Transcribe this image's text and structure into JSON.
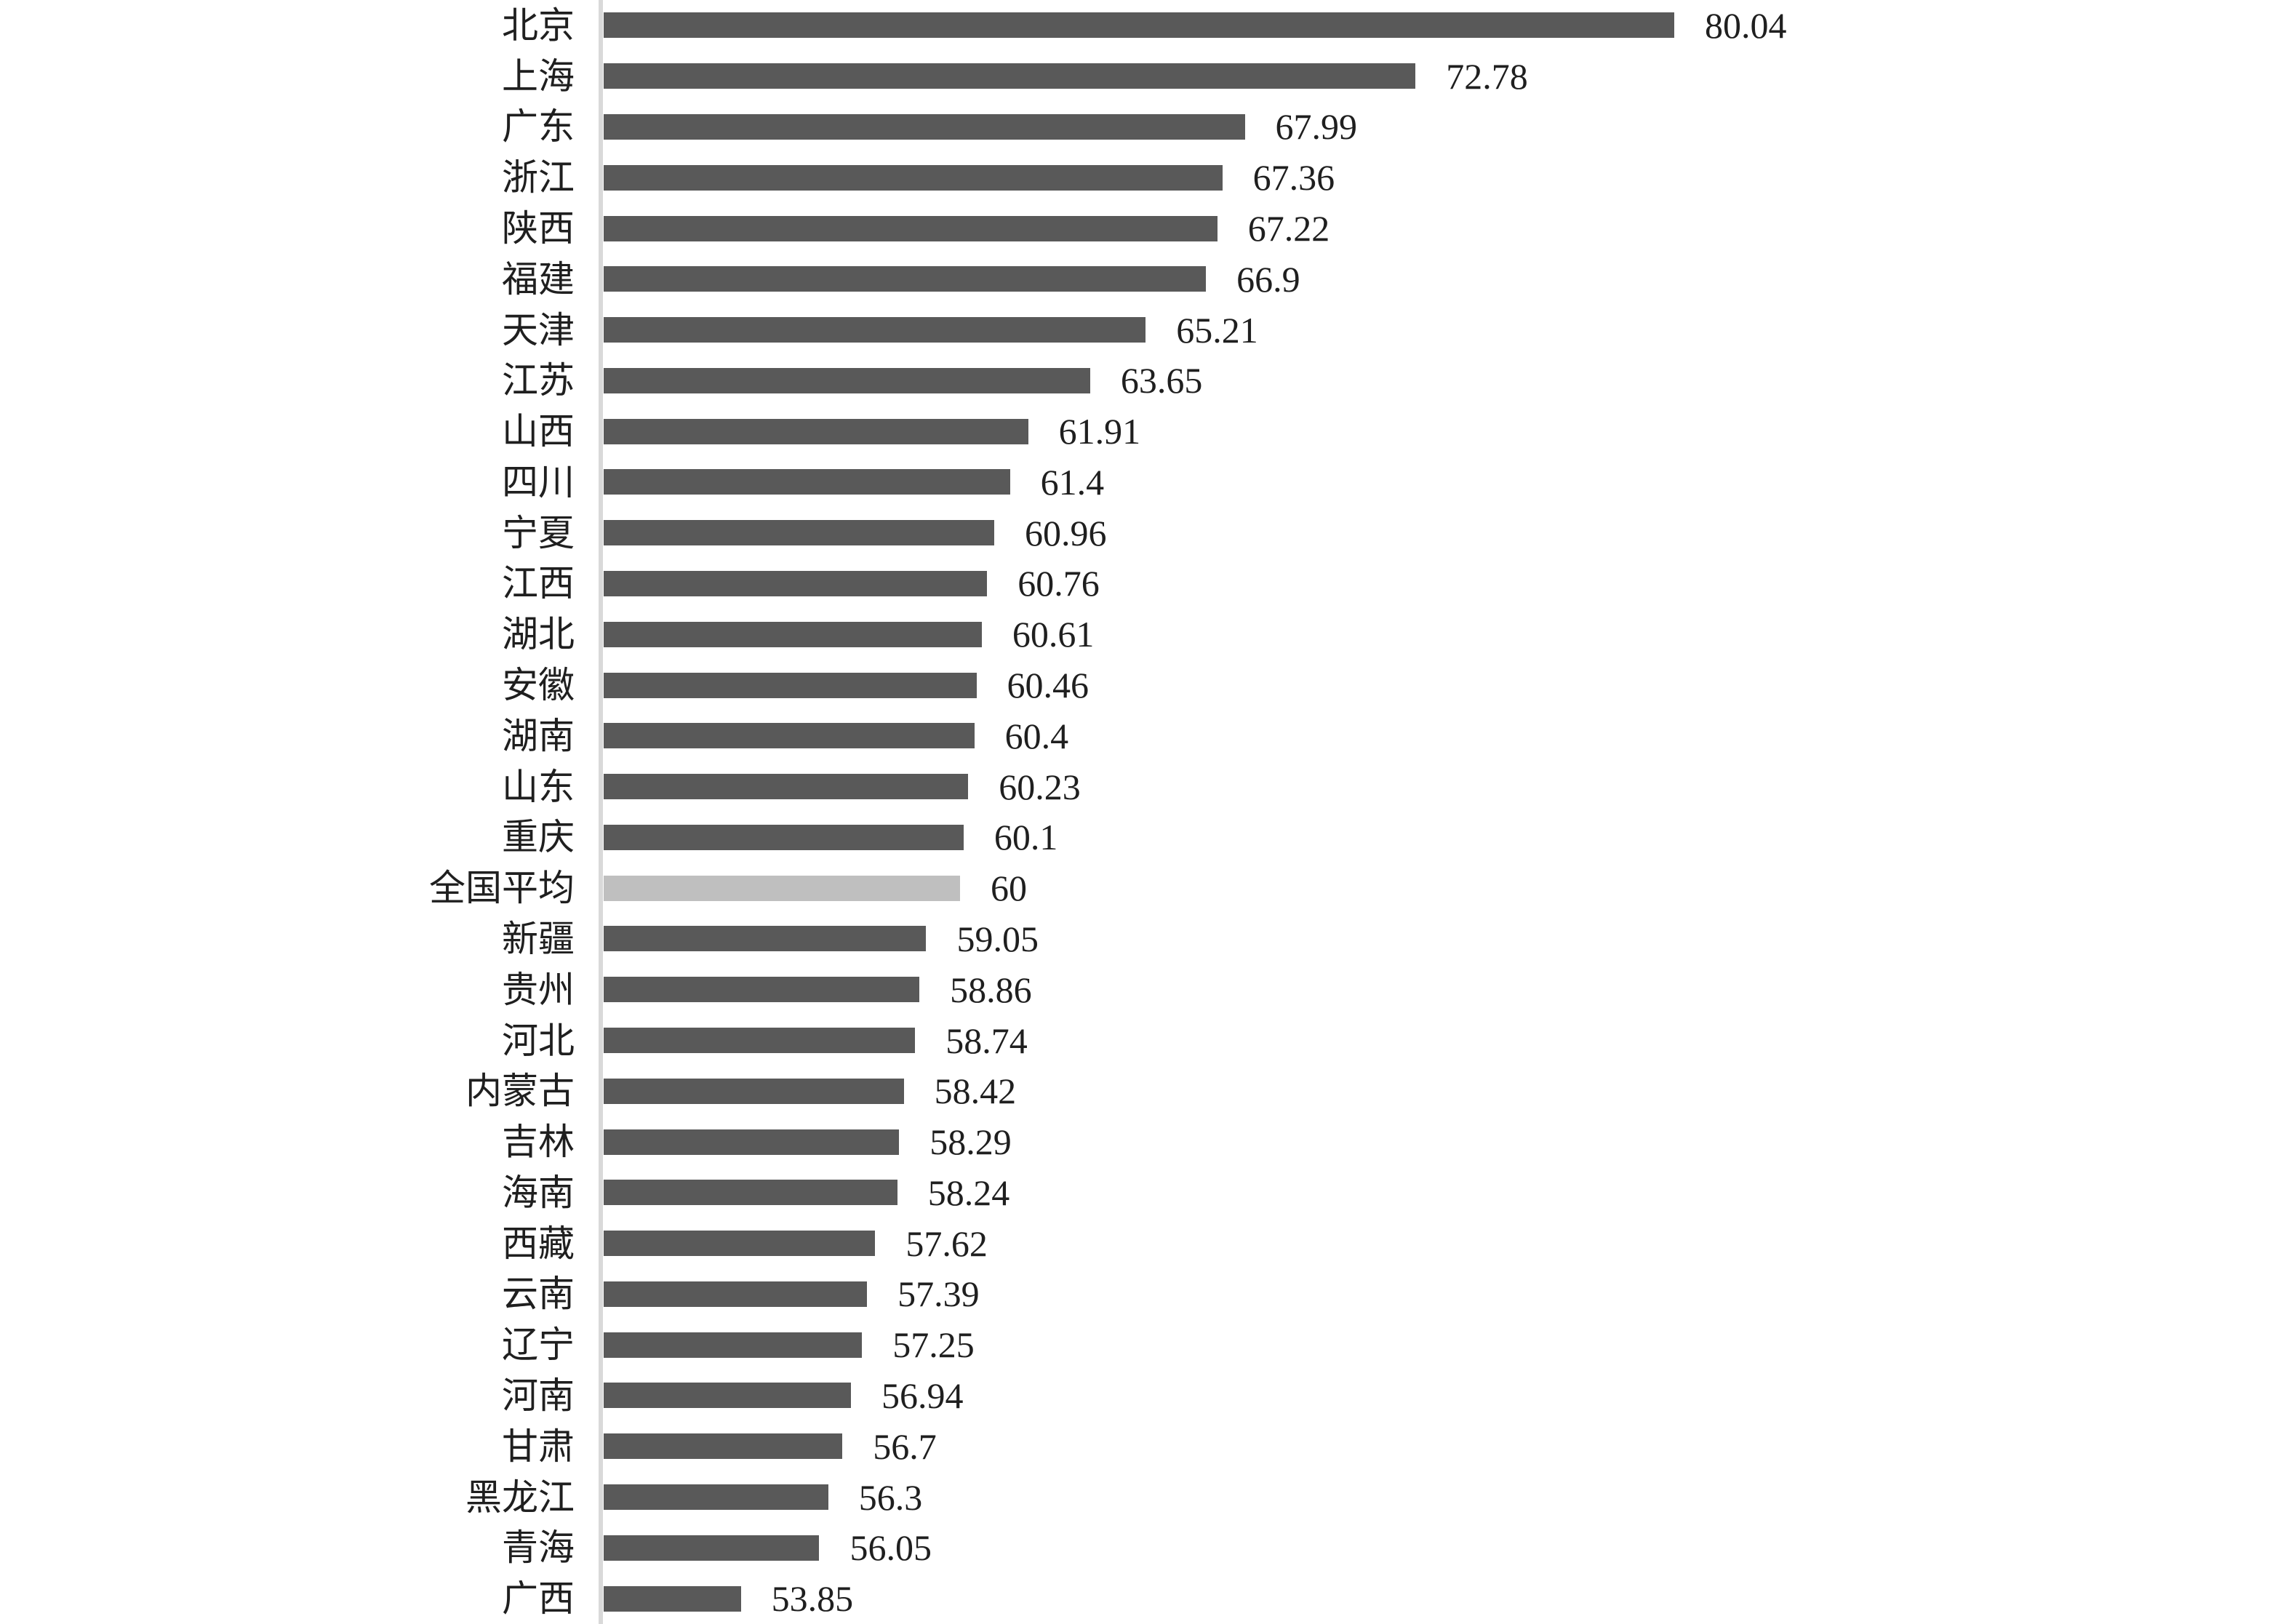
{
  "chart_data": {
    "type": "bar",
    "orientation": "horizontal",
    "title": "",
    "xlabel": "",
    "ylabel": "",
    "grid": false,
    "legend_position": "none",
    "axis_min": 50,
    "axis_max": 97,
    "categories": [
      "北京",
      "上海",
      "广东",
      "浙江",
      "陕西",
      "福建",
      "天津",
      "江苏",
      "山西",
      "四川",
      "宁夏",
      "江西",
      "湖北",
      "安徽",
      "湖南",
      "山东",
      "重庆",
      "全国平均",
      "新疆",
      "贵州",
      "河北",
      "内蒙古",
      "吉林",
      "海南",
      "西藏",
      "云南",
      "辽宁",
      "河南",
      "甘肃",
      "黑龙江",
      "青海",
      "广西"
    ],
    "values": [
      80.04,
      72.78,
      67.99,
      67.36,
      67.22,
      66.9,
      65.21,
      63.65,
      61.91,
      61.4,
      60.96,
      60.76,
      60.61,
      60.46,
      60.4,
      60.23,
      60.1,
      60,
      59.05,
      58.86,
      58.74,
      58.42,
      58.29,
      58.24,
      57.62,
      57.39,
      57.25,
      56.94,
      56.7,
      56.3,
      56.05,
      53.85
    ],
    "value_labels": [
      "80.04",
      "72.78",
      "67.99",
      "67.36",
      "67.22",
      "66.9",
      "65.21",
      "63.65",
      "61.91",
      "61.4",
      "60.96",
      "60.76",
      "60.61",
      "60.46",
      "60.4",
      "60.23",
      "60.1",
      "60",
      "59.05",
      "58.86",
      "58.74",
      "58.42",
      "58.29",
      "58.24",
      "57.62",
      "57.39",
      "57.25",
      "56.94",
      "56.7",
      "56.3",
      "56.05",
      "53.85"
    ],
    "highlight_category": "全国平均",
    "highlight_index": 17,
    "colors": {
      "bar": "#595959",
      "highlight_bar": "#bfbfbf",
      "axis_line": "#d9d9d9",
      "text": "#1f1f1f",
      "background": "#ffffff"
    }
  }
}
